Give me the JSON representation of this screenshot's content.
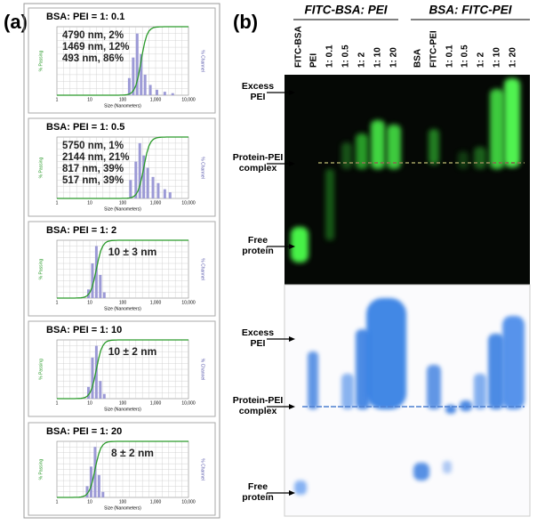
{
  "panel_a": {
    "label": "(a)",
    "x_axis_label": "Size (Nanometers)",
    "x_ticks": [
      "1",
      "10",
      "100",
      "1,000",
      "10,000"
    ],
    "left_axis_label": "% Passing",
    "right_axis_label": "% Channel",
    "plots": [
      {
        "title": "BSA: PEI = 1: 0.1",
        "annotations": [
          "4790 nm, 2%",
          "1469 nm, 12%",
          "493 nm, 86%"
        ]
      },
      {
        "title": "BSA: PEI = 1: 0.5",
        "annotations": [
          "5750 nm, 1%",
          "2144 nm, 21%",
          "817 nm, 39%",
          "517 nm, 39%"
        ]
      },
      {
        "title": "BSA: PEI = 1: 2",
        "annotations": [
          "10 ± 3 nm"
        ]
      },
      {
        "title": "BSA: PEI = 1: 10",
        "annotations": [
          "10 ± 2 nm"
        ]
      },
      {
        "title": "BSA: PEI = 1: 20",
        "annotations": [
          "8 ± 2 nm"
        ]
      }
    ]
  },
  "panel_b": {
    "label": "(b)",
    "group_headers": [
      "FITC-BSA: PEI",
      "BSA: FITC-PEI"
    ],
    "lanes": [
      "FITC-BSA",
      "PEI",
      "1: 0.1",
      "1: 0.5",
      "1: 2",
      "1: 10",
      "1: 20",
      "BSA",
      "FITC-PEI",
      "1: 0.1",
      "1: 0.5",
      "1: 2",
      "1: 10",
      "1: 20"
    ],
    "top_side_labels": [
      [
        "Excess",
        "PEI"
      ],
      [
        "Protein-PEI",
        "complex"
      ],
      [
        "Free",
        "protein"
      ]
    ],
    "bottom_side_labels": [
      [
        "Excess",
        "PEI"
      ],
      [
        "Protein-PEI",
        "complex"
      ],
      [
        "Free",
        "protein"
      ]
    ]
  }
}
